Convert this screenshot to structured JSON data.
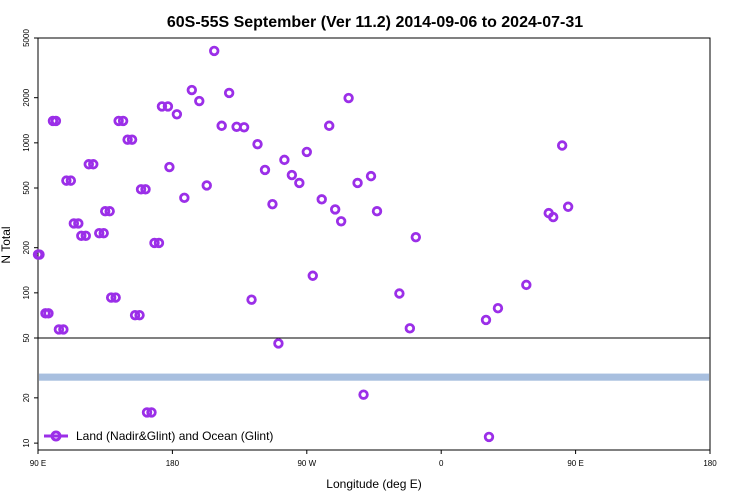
{
  "chart_data": {
    "type": "scatter",
    "title": "60S-55S September (Ver 11.2)   2014-09-06 to 2024-07-31",
    "xlabel": "Longitude (deg E)",
    "ylabel": "N Total",
    "x_tick_labels": [
      "90 E",
      "180",
      "90 W",
      "0",
      "90 E",
      "180"
    ],
    "y_tick_labels": [
      "10",
      "20",
      "50",
      "100",
      "200",
      "500",
      "1000",
      "2000",
      "5000"
    ],
    "y_scale": "log",
    "upper_panel_ylim": [
      50,
      5000
    ],
    "lower_panel_ylim": [
      9,
      50
    ],
    "legend": {
      "label": "Land (Nadir&Glint) and Ocean (Glint)",
      "placement": "bottom-left"
    },
    "colors": {
      "points": "#9b2fe8",
      "band": "#a8bfdf"
    },
    "band_range": [
      26,
      29
    ],
    "series": [
      {
        "name": "Land (Nadir&Glint) and Ocean (Glint)",
        "points": [
          {
            "x": 90,
            "y": 180
          },
          {
            "x": 95,
            "y": 73
          },
          {
            "x": 100,
            "y": 1400
          },
          {
            "x": 104,
            "y": 57
          },
          {
            "x": 109,
            "y": 560
          },
          {
            "x": 114,
            "y": 290
          },
          {
            "x": 119,
            "y": 240
          },
          {
            "x": 124,
            "y": 720
          },
          {
            "x": 131,
            "y": 250
          },
          {
            "x": 135,
            "y": 350
          },
          {
            "x": 139,
            "y": 93
          },
          {
            "x": 144,
            "y": 1400
          },
          {
            "x": 150,
            "y": 1050
          },
          {
            "x": 155,
            "y": 71
          },
          {
            "x": 159,
            "y": 490
          },
          {
            "x": 163,
            "y": 16
          },
          {
            "x": 168,
            "y": 215
          },
          {
            "x": 173,
            "y": 1750
          },
          {
            "x": 178,
            "y": 690
          },
          {
            "x": 183,
            "y": 1550
          },
          {
            "x": 188,
            "y": 430
          },
          {
            "x": 193,
            "y": 2250
          },
          {
            "x": 198,
            "y": 1900
          },
          {
            "x": 203,
            "y": 520
          },
          {
            "x": 208,
            "y": 4100
          },
          {
            "x": 213,
            "y": 1300
          },
          {
            "x": 218,
            "y": 2150
          },
          {
            "x": 223,
            "y": 1280
          },
          {
            "x": 228,
            "y": 1270
          },
          {
            "x": 233,
            "y": 90
          },
          {
            "x": 237,
            "y": 980
          },
          {
            "x": 242,
            "y": 660
          },
          {
            "x": 247,
            "y": 390
          },
          {
            "x": 251,
            "y": 46
          },
          {
            "x": 255,
            "y": 770
          },
          {
            "x": 260,
            "y": 610
          },
          {
            "x": 265,
            "y": 540
          },
          {
            "x": 270,
            "y": 870
          },
          {
            "x": 274,
            "y": 130
          },
          {
            "x": 280,
            "y": 420
          },
          {
            "x": 285,
            "y": 1300
          },
          {
            "x": 289,
            "y": 360
          },
          {
            "x": 293,
            "y": 300
          },
          {
            "x": 298,
            "y": 1990
          },
          {
            "x": 304,
            "y": 540
          },
          {
            "x": 308,
            "y": 21
          },
          {
            "x": 313,
            "y": 600
          },
          {
            "x": 317,
            "y": 350
          },
          {
            "x": 332,
            "y": 99
          },
          {
            "x": 339,
            "y": 58
          },
          {
            "x": 343,
            "y": 235
          },
          {
            "x": 30,
            "y": 66
          },
          {
            "x": 32,
            "y": 11
          },
          {
            "x": 38,
            "y": 79
          },
          {
            "x": 57,
            "y": 113
          },
          {
            "x": 72,
            "y": 340
          },
          {
            "x": 75,
            "y": 320
          },
          {
            "x": 81,
            "y": 960
          },
          {
            "x": 85,
            "y": 375
          },
          {
            "x": 91,
            "y": 180
          },
          {
            "x": 97,
            "y": 73
          },
          {
            "x": 102,
            "y": 1400
          },
          {
            "x": 107,
            "y": 57
          },
          {
            "x": 112,
            "y": 560
          },
          {
            "x": 117,
            "y": 290
          },
          {
            "x": 122,
            "y": 240
          },
          {
            "x": 127,
            "y": 720
          },
          {
            "x": 134,
            "y": 250
          },
          {
            "x": 138,
            "y": 350
          },
          {
            "x": 142,
            "y": 93
          },
          {
            "x": 147,
            "y": 1400
          },
          {
            "x": 153,
            "y": 1050
          },
          {
            "x": 158,
            "y": 71
          },
          {
            "x": 162,
            "y": 490
          },
          {
            "x": 166,
            "y": 16
          },
          {
            "x": 171,
            "y": 215
          },
          {
            "x": 177,
            "y": 1750
          }
        ]
      }
    ]
  }
}
